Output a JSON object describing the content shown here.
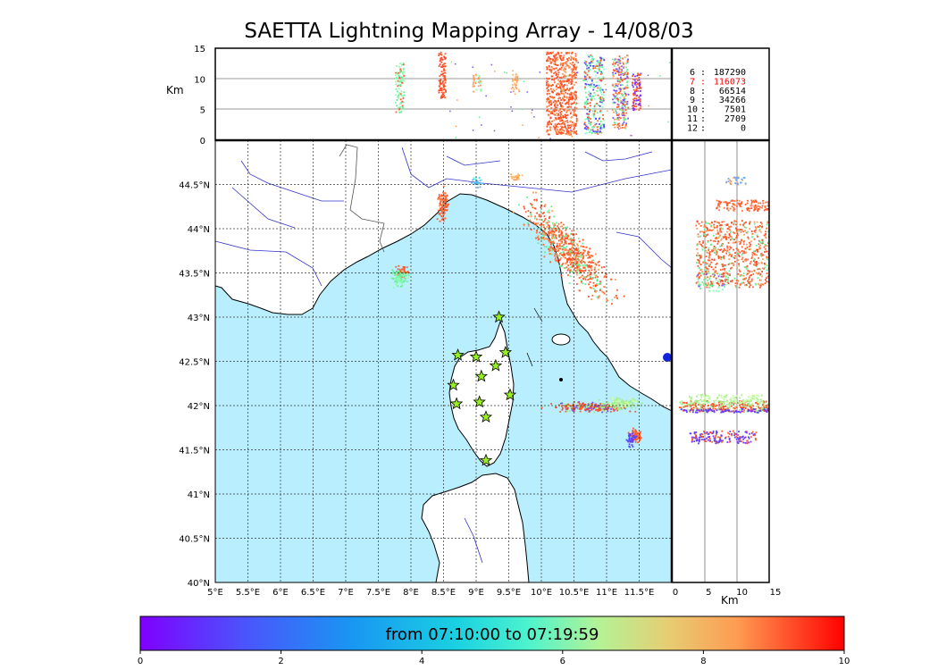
{
  "chart_data": {
    "type": "scatter",
    "title": "SAETTA Lightning Mapping Array - 14/08/03",
    "map_panel": {
      "xlim": [
        5,
        12
      ],
      "ylim": [
        40,
        45
      ],
      "x_ticks": [
        "5°E",
        "5.5°E",
        "6°E",
        "6.5°E",
        "7°E",
        "7.5°E",
        "8°E",
        "8.5°E",
        "9°E",
        "9.5°E",
        "10°E",
        "10.5°E",
        "11°E",
        "11.5°E"
      ],
      "y_ticks": [
        "40°N",
        "40.5°N",
        "41°N",
        "41.5°N",
        "42°N",
        "42.5°N",
        "43°N",
        "43.5°N",
        "44°N",
        "44.5°N"
      ],
      "grid": true,
      "stations": [
        {
          "lon": 9.35,
          "lat": 43.0
        },
        {
          "lon": 8.72,
          "lat": 42.57
        },
        {
          "lon": 9.0,
          "lat": 42.55
        },
        {
          "lon": 9.45,
          "lat": 42.6
        },
        {
          "lon": 9.3,
          "lat": 42.45
        },
        {
          "lon": 9.08,
          "lat": 42.33
        },
        {
          "lon": 8.65,
          "lat": 42.23
        },
        {
          "lon": 9.52,
          "lat": 42.12
        },
        {
          "lon": 8.7,
          "lat": 42.02
        },
        {
          "lon": 9.05,
          "lat": 42.04
        },
        {
          "lon": 9.15,
          "lat": 41.87
        },
        {
          "lon": 9.15,
          "lat": 41.38
        }
      ],
      "source_clusters": [
        {
          "lon": 10.45,
          "lat": 43.7,
          "color": "#ff5a2a"
        },
        {
          "lon": 8.5,
          "lat": 44.28,
          "color": "#ff5a2a"
        },
        {
          "lon": 7.85,
          "lat": 43.5,
          "color": "#ff5a2a"
        },
        {
          "lon": 7.85,
          "lat": 43.45,
          "color": "#66ee99"
        },
        {
          "lon": 10.75,
          "lat": 42.0,
          "color": "#ff5a2a"
        },
        {
          "lon": 11.4,
          "lat": 41.65,
          "color": "#ff5a2a"
        },
        {
          "lon": 11.35,
          "lat": 41.63,
          "color": "#7733ff"
        },
        {
          "lon": 9.0,
          "lat": 44.55,
          "color": "#66aaff"
        },
        {
          "lon": 9.6,
          "lat": 44.6,
          "color": "#ff9955"
        }
      ]
    },
    "altitude_panel_top": {
      "ylabel": "Km",
      "ylim": [
        0,
        15
      ],
      "y_ticks": [
        "0",
        "5",
        "10",
        "15"
      ]
    },
    "altitude_panel_right": {
      "xlabel": "Km",
      "xlim": [
        0,
        15
      ],
      "x_ticks": [
        "0",
        "5",
        "10",
        "15"
      ]
    },
    "source_counts": [
      {
        "label": "6",
        "count": "187290",
        "color": "#000000"
      },
      {
        "label": "7",
        "count": "116073",
        "color": "#ff0000"
      },
      {
        "label": "8",
        "count": "66514",
        "color": "#000000"
      },
      {
        "label": "9",
        "count": "34266",
        "color": "#000000"
      },
      {
        "label": "10",
        "count": "7501",
        "color": "#000000"
      },
      {
        "label": "11",
        "count": "2709",
        "color": "#000000"
      },
      {
        "label": "12",
        "count": "0",
        "color": "#000000"
      }
    ],
    "colorbar": {
      "label": "from 07:10:00 to 07:19:59",
      "range": [
        0,
        10
      ],
      "ticks": [
        "0",
        "2",
        "4",
        "6",
        "8",
        "10"
      ],
      "colormap": "rainbow"
    },
    "colors": {
      "sea": "#b8eefd",
      "land": "#ffffff",
      "rivers": "#3333cc",
      "station_fill": "#99ee22"
    }
  }
}
